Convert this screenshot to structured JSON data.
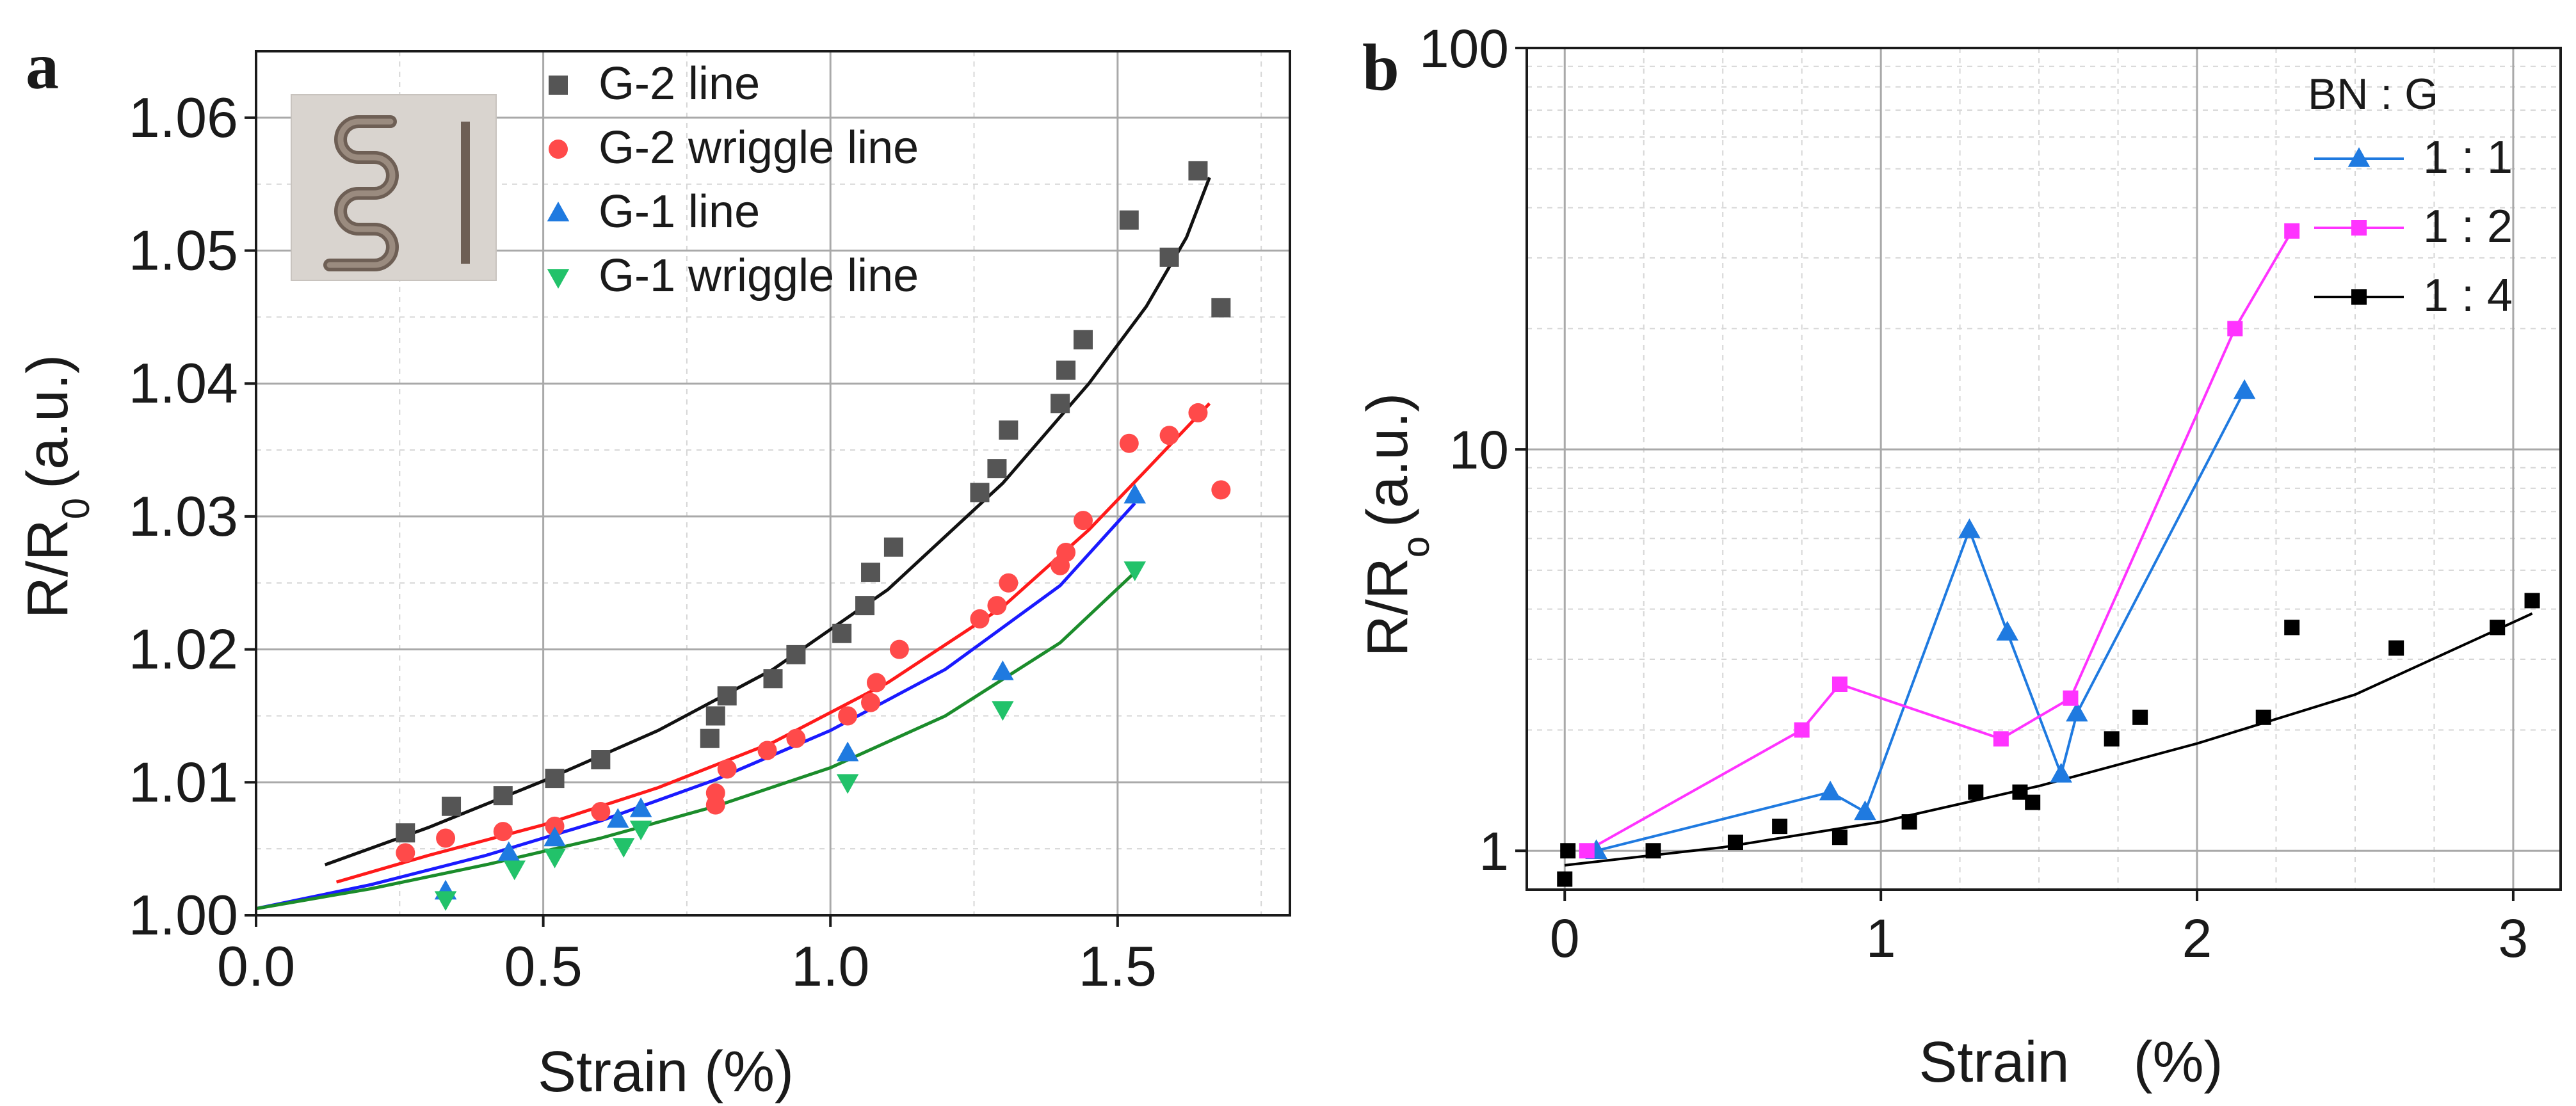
{
  "chart_data": [
    {
      "panel": "a",
      "type": "scatter",
      "xlabel": "Strain (%)",
      "ylabel": "R/R",
      "ylabel_sub": "0",
      "ylabel_unit": "(a.u.)",
      "xlim": [
        0,
        1.8
      ],
      "ylim": [
        1.0,
        1.065
      ],
      "x_ticks": [
        0,
        0.5,
        1.0,
        1.5
      ],
      "x_tick_labels": [
        "0.0",
        "0.5",
        "1.0",
        "1.5"
      ],
      "y_ticks": [
        1.0,
        1.01,
        1.02,
        1.03,
        1.04,
        1.05,
        1.06
      ],
      "y_tick_labels": [
        "1.00",
        "1.01",
        "1.02",
        "1.03",
        "1.04",
        "1.05",
        "1.06"
      ],
      "grid": true,
      "legend_position": "top-right",
      "inset": "photo of serpentine (wriggle) and straight printed lines",
      "series": [
        {
          "name": "G-2 line",
          "marker": "square",
          "color": "#555555",
          "fit_color": "#111111",
          "points": [
            [
              0.26,
              1.0062
            ],
            [
              0.34,
              1.0082
            ],
            [
              0.43,
              1.009
            ],
            [
              0.52,
              1.0103
            ],
            [
              0.6,
              1.0117
            ],
            [
              0.79,
              1.0133
            ],
            [
              0.8,
              1.015
            ],
            [
              0.82,
              1.0165
            ],
            [
              0.9,
              1.0178
            ],
            [
              0.94,
              1.0196
            ],
            [
              1.02,
              1.0212
            ],
            [
              1.06,
              1.0233
            ],
            [
              1.07,
              1.0258
            ],
            [
              1.11,
              1.0277
            ],
            [
              1.26,
              1.0318
            ],
            [
              1.29,
              1.0336
            ],
            [
              1.31,
              1.0365
            ],
            [
              1.4,
              1.0385
            ],
            [
              1.41,
              1.041
            ],
            [
              1.44,
              1.0433
            ],
            [
              1.52,
              1.0523
            ],
            [
              1.59,
              1.0495
            ],
            [
              1.64,
              1.056
            ],
            [
              1.68,
              1.0457
            ]
          ],
          "fit": [
            [
              0.12,
              1.0038
            ],
            [
              0.3,
              1.0066
            ],
            [
              0.5,
              1.0101
            ],
            [
              0.7,
              1.0139
            ],
            [
              0.9,
              1.0185
            ],
            [
              1.1,
              1.0245
            ],
            [
              1.3,
              1.0325
            ],
            [
              1.45,
              1.04
            ],
            [
              1.55,
              1.0458
            ],
            [
              1.62,
              1.051
            ],
            [
              1.66,
              1.0555
            ]
          ]
        },
        {
          "name": "G-2 wriggle line",
          "marker": "circle",
          "color": "#ff4a4a",
          "fit_color": "#ff1a1a",
          "points": [
            [
              0.26,
              1.0047
            ],
            [
              0.33,
              1.0058
            ],
            [
              0.43,
              1.0063
            ],
            [
              0.52,
              1.0067
            ],
            [
              0.6,
              1.0078
            ],
            [
              0.8,
              1.0083
            ],
            [
              0.8,
              1.0092
            ],
            [
              0.82,
              1.011
            ],
            [
              0.89,
              1.0124
            ],
            [
              0.94,
              1.0133
            ],
            [
              1.03,
              1.015
            ],
            [
              1.07,
              1.016
            ],
            [
              1.08,
              1.0175
            ],
            [
              1.12,
              1.02
            ],
            [
              1.26,
              1.0223
            ],
            [
              1.29,
              1.0233
            ],
            [
              1.31,
              1.025
            ],
            [
              1.4,
              1.0263
            ],
            [
              1.41,
              1.0273
            ],
            [
              1.44,
              1.0297
            ],
            [
              1.52,
              1.0355
            ],
            [
              1.59,
              1.0361
            ],
            [
              1.64,
              1.0378
            ],
            [
              1.68,
              1.032
            ]
          ],
          "fit": [
            [
              0.14,
              1.0025
            ],
            [
              0.3,
              1.0045
            ],
            [
              0.5,
              1.0068
            ],
            [
              0.7,
              1.0096
            ],
            [
              0.9,
              1.013
            ],
            [
              1.1,
              1.0175
            ],
            [
              1.3,
              1.0232
            ],
            [
              1.45,
              1.029
            ],
            [
              1.55,
              1.0335
            ],
            [
              1.66,
              1.0385
            ]
          ]
        },
        {
          "name": "G-1 line",
          "marker": "triangle-up",
          "color": "#1f7ae0",
          "fit_color": "#1a1aff",
          "points": [
            [
              0.33,
              1.0018
            ],
            [
              0.44,
              1.0047
            ],
            [
              0.52,
              1.0058
            ],
            [
              0.63,
              1.0072
            ],
            [
              0.67,
              1.008
            ],
            [
              1.03,
              1.0122
            ],
            [
              1.3,
              1.0183
            ],
            [
              1.53,
              1.0316
            ]
          ],
          "fit": [
            [
              0.0,
              1.0005
            ],
            [
              0.2,
              1.0023
            ],
            [
              0.4,
              1.0045
            ],
            [
              0.6,
              1.0071
            ],
            [
              0.8,
              1.0102
            ],
            [
              1.0,
              1.0139
            ],
            [
              1.2,
              1.0185
            ],
            [
              1.4,
              1.0248
            ],
            [
              1.53,
              1.031
            ]
          ]
        },
        {
          "name": "G-1 wriggle line",
          "marker": "triangle-down",
          "color": "#22c26a",
          "fit_color": "#1b8c2b",
          "points": [
            [
              0.33,
              1.0012
            ],
            [
              0.45,
              1.0035
            ],
            [
              0.52,
              1.0044
            ],
            [
              0.64,
              1.0052
            ],
            [
              0.67,
              1.0065
            ],
            [
              1.03,
              1.01
            ],
            [
              1.3,
              1.0155
            ],
            [
              1.53,
              1.026
            ]
          ],
          "fit": [
            [
              0.0,
              1.0005
            ],
            [
              0.2,
              1.002
            ],
            [
              0.4,
              1.0038
            ],
            [
              0.6,
              1.0058
            ],
            [
              0.8,
              1.0082
            ],
            [
              1.0,
              1.0111
            ],
            [
              1.2,
              1.015
            ],
            [
              1.4,
              1.0205
            ],
            [
              1.53,
              1.0258
            ]
          ]
        }
      ]
    },
    {
      "panel": "b",
      "type": "line",
      "xlabel": "Strain    (%)",
      "ylabel": "R/R",
      "ylabel_sub": "o",
      "ylabel_unit": "(a.u.)",
      "y_scale": "log",
      "xlim": [
        -0.12,
        3.15
      ],
      "ylim": [
        0.8,
        100
      ],
      "x_ticks": [
        0,
        1,
        2,
        3
      ],
      "x_tick_labels": [
        "0",
        "1",
        "2",
        "3"
      ],
      "y_ticks": [
        1,
        10,
        100
      ],
      "y_tick_labels": [
        "1",
        "10",
        "100"
      ],
      "grid": true,
      "legend_title": "BN : G",
      "legend_position": "top-right",
      "series": [
        {
          "name": "1 : 1",
          "marker": "triangle-up",
          "color": "#1f7ae0",
          "connect": true,
          "points": [
            [
              0.1,
              1.0
            ],
            [
              0.84,
              1.4
            ],
            [
              0.95,
              1.25
            ],
            [
              1.28,
              6.3
            ],
            [
              1.4,
              3.5
            ],
            [
              1.57,
              1.55
            ],
            [
              1.62,
              2.2
            ],
            [
              2.15,
              14.0
            ]
          ]
        },
        {
          "name": "1 : 2",
          "marker": "square",
          "color": "#ff33ff",
          "connect": true,
          "points": [
            [
              0.07,
              1.0
            ],
            [
              0.75,
              2.0
            ],
            [
              0.87,
              2.6
            ],
            [
              1.38,
              1.9
            ],
            [
              1.6,
              2.4
            ],
            [
              2.12,
              20.0
            ],
            [
              2.3,
              35.0
            ]
          ]
        },
        {
          "name": "1 : 4",
          "marker": "square",
          "color": "#000000",
          "connect": false,
          "points": [
            [
              0.0,
              0.85
            ],
            [
              0.01,
              1.0
            ],
            [
              0.28,
              1.0
            ],
            [
              0.54,
              1.05
            ],
            [
              0.68,
              1.15
            ],
            [
              0.87,
              1.08
            ],
            [
              1.09,
              1.18
            ],
            [
              1.3,
              1.4
            ],
            [
              1.44,
              1.4
            ],
            [
              1.48,
              1.32
            ],
            [
              1.73,
              1.9
            ],
            [
              1.82,
              2.15
            ],
            [
              2.21,
              2.15
            ],
            [
              2.3,
              3.6
            ],
            [
              2.63,
              3.2
            ],
            [
              2.95,
              3.6
            ],
            [
              3.06,
              4.2
            ]
          ],
          "fit": [
            [
              0.0,
              0.92
            ],
            [
              0.5,
              1.02
            ],
            [
              1.0,
              1.18
            ],
            [
              1.5,
              1.45
            ],
            [
              2.0,
              1.85
            ],
            [
              2.5,
              2.45
            ],
            [
              3.06,
              3.9
            ]
          ]
        }
      ]
    }
  ]
}
